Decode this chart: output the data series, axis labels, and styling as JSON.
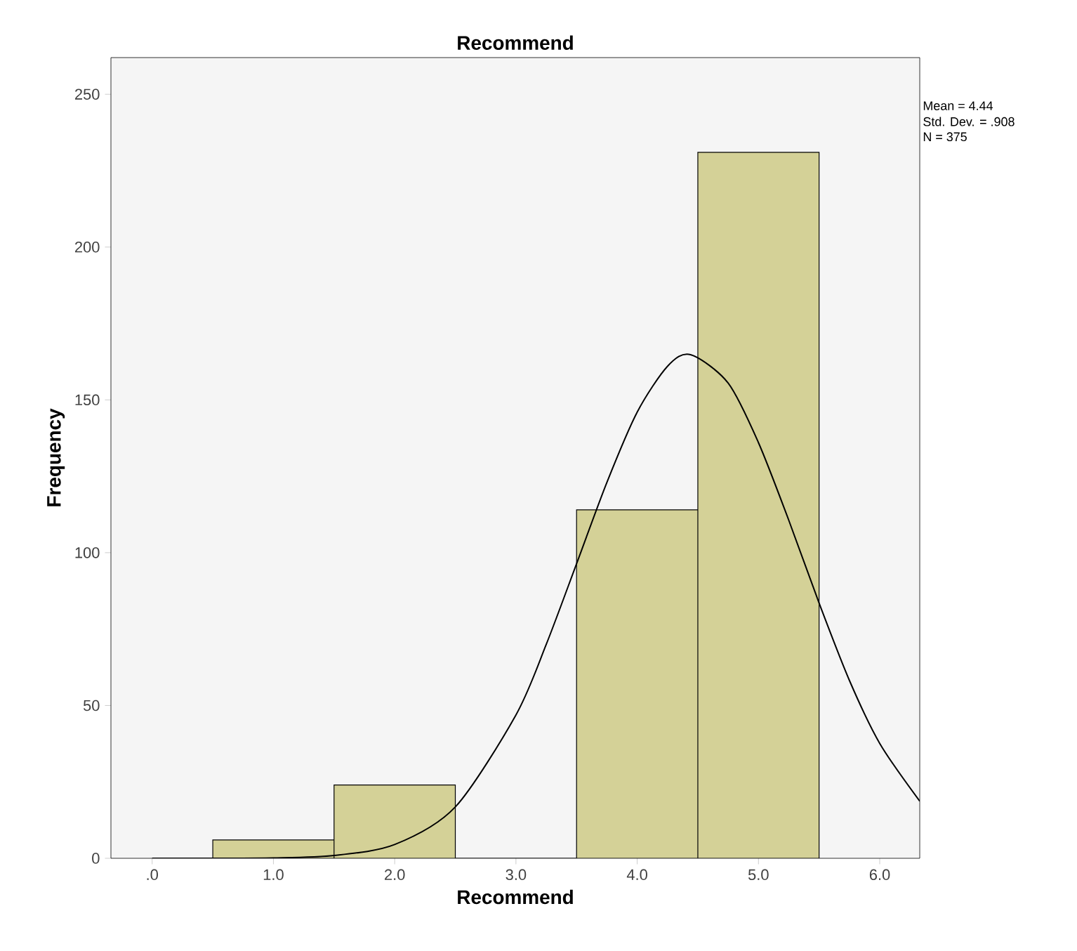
{
  "chart_data": {
    "type": "histogram",
    "title": "Recommend",
    "xlabel": "Recommend",
    "ylabel": "Frequency",
    "series": [
      {
        "bins": [
          0.5,
          1.5,
          2.5,
          3.5,
          4.5,
          5.5
        ],
        "values": [
          6,
          24,
          0,
          114,
          231
        ],
        "color": "#d4d197"
      },
      {
        "type": "line",
        "x": [
          0,
          0.5,
          1,
          1.5,
          2,
          2.5,
          3,
          3.25,
          3.5,
          3.75,
          4,
          4.25,
          4.44,
          4.75,
          5,
          5.25,
          5.5,
          5.75,
          6,
          6.33
        ],
        "values": [
          0,
          0,
          0.1,
          0.9,
          4.5,
          16.8,
          46.9,
          70,
          96.4,
          123,
          146,
          161,
          164.8,
          155.5,
          136,
          110.6,
          83.5,
          58.2,
          37.6,
          18.7
        ],
        "color": "#000000"
      }
    ],
    "xlim": [
      -0.34,
      6.33
    ],
    "ylim": [
      0,
      262
    ],
    "xticks": [
      {
        "value": 0,
        "label": ".0"
      },
      {
        "value": 1,
        "label": "1.0"
      },
      {
        "value": 2,
        "label": "2.0"
      },
      {
        "value": 3,
        "label": "3.0"
      },
      {
        "value": 4,
        "label": "4.0"
      },
      {
        "value": 5,
        "label": "5.0"
      },
      {
        "value": 6,
        "label": "6.0"
      }
    ],
    "yticks": [
      0,
      50,
      100,
      150,
      200,
      250
    ],
    "annotations": [
      "Mean = 4.44",
      "Std. Dev. = .908",
      "N = 375"
    ]
  }
}
